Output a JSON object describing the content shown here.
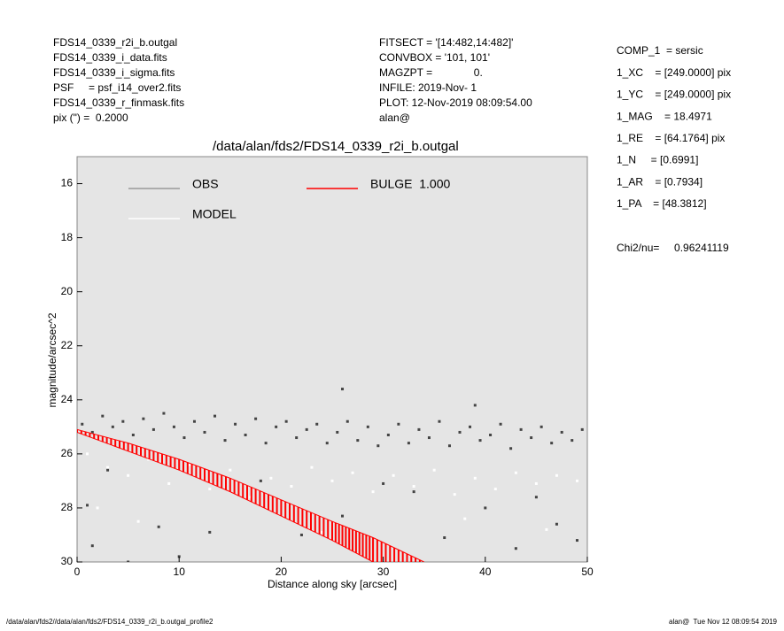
{
  "header_left": [
    "FDS14_0339_r2i_b.outgal",
    "FDS14_0339_i_data.fits",
    "FDS14_0339_i_sigma.fits",
    "PSF     = psf_i14_over2.fits",
    "FDS14_0339_r_finmask.fits",
    "pix (\") =  0.2000"
  ],
  "header_middle": [
    "FITSECT = '[14:482,14:482]'",
    "CONVBOX = '101, 101'",
    "MAGZPT =              0.",
    "INFILE: 2019-Nov- 1",
    "PLOT: 12-Nov-2019 08:09:54.00",
    "alan@"
  ],
  "parameters": [
    "COMP_1  = sersic",
    "1_XC    = [249.0000] pix",
    "1_YC    = [249.0000] pix",
    "1_MAG    = 18.4971",
    "1_RE    = [64.1764] pix",
    "1_N     = [0.6991]",
    "1_AR    = [0.7934]",
    "1_PA    = [48.3812]"
  ],
  "chi2": "Chi2/nu=     0.96241119",
  "footer_left": "/data/alan/fds2//data/alan/fds2/FDS14_0339_r2i_b.outgal_profile2",
  "footer_right": "alan@  Tue Nov 12 08:09:54 2019",
  "chart_data": {
    "type": "scatter",
    "title": "/data/alan/fds2/FDS14_0339_r2i_b.outgal",
    "x_label": "Distance along sky [arcsec]",
    "y_label": "magnitude/arcsec^2",
    "xlim": [
      0,
      50
    ],
    "xticks": [
      0,
      10,
      20,
      30,
      40,
      50
    ],
    "ylim": [
      30,
      15
    ],
    "yticks": [
      16,
      18,
      20,
      22,
      24,
      26,
      28,
      30
    ],
    "background": "#e5e5e5",
    "series": [
      {
        "name": "OBS",
        "color": "#444444",
        "legend_color": "#999999",
        "x": [
          0.5,
          1.5,
          2.5,
          3.5,
          4.5,
          5.5,
          6.5,
          7.5,
          8.5,
          9.5,
          10.5,
          11.5,
          12.5,
          13.5,
          14.5,
          15.5,
          16.5,
          17.5,
          18.5,
          19.5,
          20.5,
          21.5,
          22.5,
          23.5,
          24.5,
          25.5,
          26.5,
          27.5,
          28.5,
          29.5,
          30.5,
          31.5,
          32.5,
          33.5,
          34.5,
          35.5,
          36.5,
          37.5,
          38.5,
          39.5,
          40.5,
          41.5,
          42.5,
          43.5,
          44.5,
          45.5,
          46.5,
          47.5,
          48.5,
          49.5,
          26,
          39,
          1,
          1.5,
          5,
          8,
          10,
          13,
          22,
          26,
          33,
          36,
          40,
          43,
          47,
          49,
          45,
          30,
          18,
          3
        ],
        "values": [
          24.9,
          25.2,
          24.6,
          25.0,
          24.8,
          25.3,
          24.7,
          25.1,
          24.5,
          25.0,
          25.4,
          24.8,
          25.2,
          24.6,
          25.5,
          24.9,
          25.3,
          24.7,
          25.6,
          25.0,
          24.8,
          25.4,
          25.1,
          24.9,
          25.6,
          25.2,
          24.8,
          25.5,
          25.0,
          25.7,
          25.3,
          24.9,
          25.6,
          25.1,
          25.4,
          24.8,
          25.7,
          25.2,
          25.0,
          25.5,
          25.3,
          24.9,
          25.8,
          25.1,
          25.4,
          25.0,
          25.6,
          25.2,
          25.5,
          25.1,
          23.6,
          24.2,
          27.9,
          29.4,
          30.0,
          28.7,
          29.8,
          28.9,
          29.0,
          28.3,
          27.4,
          29.1,
          28.0,
          29.5,
          28.6,
          29.2,
          27.6,
          27.1,
          27.0,
          26.6
        ]
      },
      {
        "name": "MODEL",
        "color": "#ffffff",
        "legend_color": "#ffffff",
        "x": [
          1,
          3,
          5,
          7,
          9,
          11,
          13,
          15,
          17,
          19,
          21,
          23,
          25,
          27,
          29,
          31,
          33,
          35,
          37,
          39,
          41,
          43,
          45,
          47,
          49,
          2,
          6,
          24,
          38,
          46
        ],
        "values": [
          26.0,
          26.5,
          26.8,
          26.2,
          27.1,
          26.4,
          27.3,
          26.6,
          27.6,
          26.9,
          27.2,
          26.5,
          27.0,
          26.7,
          27.4,
          26.8,
          27.2,
          26.6,
          27.5,
          26.9,
          27.3,
          26.7,
          27.1,
          26.8,
          27.0,
          28.0,
          28.5,
          28.9,
          28.4,
          28.8
        ]
      },
      {
        "name": "BULGE  1.000",
        "color": "#ff0000",
        "legend_color": "#ff0000",
        "x": [
          0,
          5,
          10,
          15,
          20,
          25,
          29,
          34
        ],
        "values": [
          25.1,
          25.6,
          26.2,
          26.9,
          27.7,
          28.5,
          29.1,
          30.0
        ],
        "lower": [
          25.2,
          25.9,
          26.6,
          27.4,
          28.3,
          29.2,
          30.0,
          null
        ]
      }
    ]
  }
}
